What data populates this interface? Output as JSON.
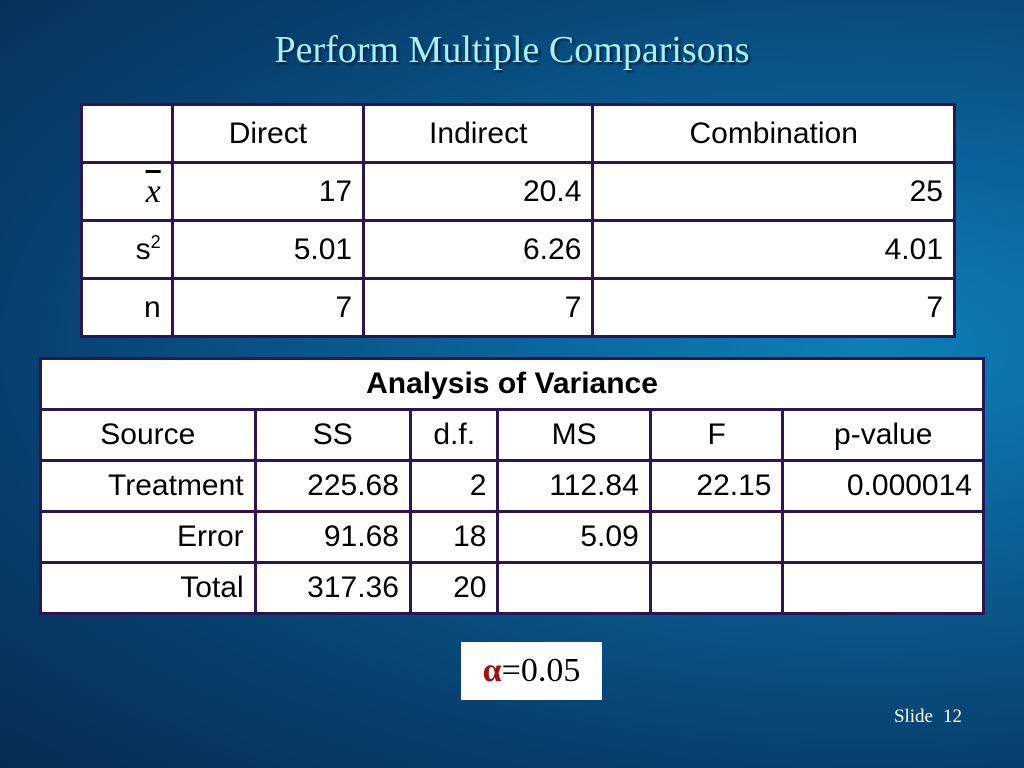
{
  "title": "Perform Multiple Comparisons",
  "summary_table": {
    "headers": [
      "",
      "Direct",
      "Indirect",
      "Combination"
    ],
    "rows": [
      {
        "label": "x",
        "values": [
          "17",
          "20.4",
          "25"
        ]
      },
      {
        "label": "s",
        "label_sup": "2",
        "values": [
          "5.01",
          "6.26",
          "4.01"
        ]
      },
      {
        "label": "n",
        "values": [
          "7",
          "7",
          "7"
        ]
      }
    ]
  },
  "anova_table": {
    "caption": "Analysis of Variance",
    "headers": [
      "Source",
      "SS",
      "d.f.",
      "MS",
      "F",
      "p-value"
    ],
    "rows": [
      [
        "Treatment",
        "225.68",
        "2",
        "112.84",
        "22.15",
        "0.000014"
      ],
      [
        "Error",
        "91.68",
        "18",
        "5.09",
        "",
        ""
      ],
      [
        "Total",
        "317.36",
        "20",
        "",
        "",
        ""
      ]
    ]
  },
  "alpha": {
    "symbol": "α",
    "text": "=0.05"
  },
  "footer": {
    "slide_label": "Slide",
    "slide_number": "12"
  }
}
